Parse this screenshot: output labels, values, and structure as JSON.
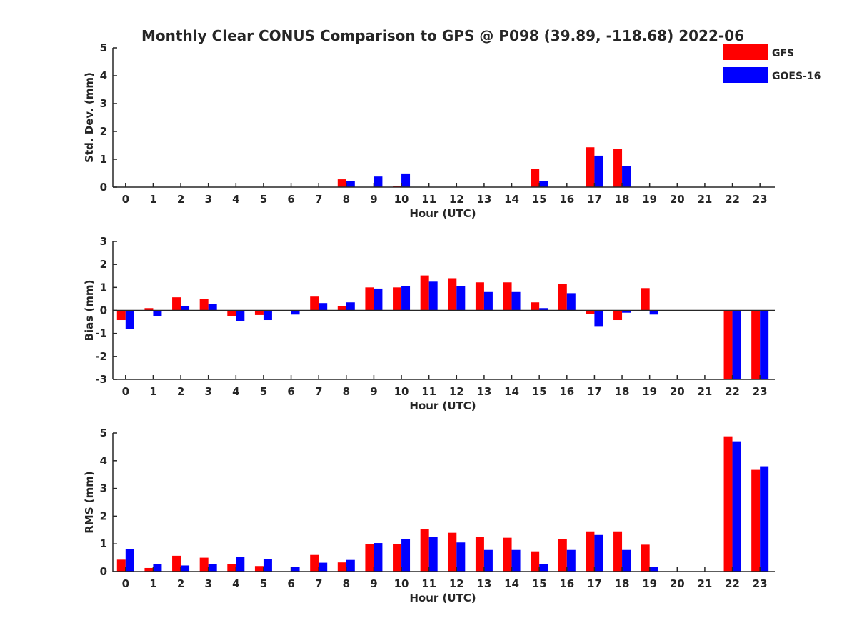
{
  "title": "Monthly Clear CONUS Comparison to GPS @ P098 (39.89, -118.68) 2022-06",
  "legend": {
    "placement": "top-right",
    "entries": [
      {
        "name": "GFS",
        "color": "#ff0000"
      },
      {
        "name": "GOES-16",
        "color": "#0000ff"
      }
    ]
  },
  "chart_data": [
    {
      "type": "bar",
      "xlabel": "Hour (UTC)",
      "ylabel": "Std. Dev. (mm)",
      "ylim": [
        0,
        5
      ],
      "yticks": [
        "0",
        "1",
        "2",
        "3",
        "4",
        "5"
      ],
      "categories": [
        "0",
        "1",
        "2",
        "3",
        "4",
        "5",
        "6",
        "7",
        "8",
        "9",
        "10",
        "11",
        "12",
        "13",
        "14",
        "15",
        "16",
        "17",
        "18",
        "19",
        "20",
        "21",
        "22",
        "23"
      ],
      "series": [
        {
          "name": "GFS",
          "color": "#ff0000",
          "values": [
            0,
            0,
            0,
            0,
            0,
            0,
            0,
            0,
            0.28,
            0,
            0.05,
            0,
            0,
            0,
            0,
            0.65,
            0,
            1.43,
            1.38,
            0,
            0,
            0,
            0,
            0
          ]
        },
        {
          "name": "GOES-16",
          "color": "#0000ff",
          "values": [
            0,
            0,
            0,
            0,
            0,
            0,
            0,
            0,
            0.23,
            0.38,
            0.49,
            0,
            0,
            0,
            0,
            0.23,
            0,
            1.13,
            0.76,
            0,
            0,
            0,
            0,
            0
          ]
        }
      ]
    },
    {
      "type": "bar",
      "xlabel": "Hour (UTC)",
      "ylabel": "Bias (mm)",
      "ylim": [
        -3,
        3
      ],
      "yticks": [
        "-3",
        "-2",
        "-1",
        "0",
        "1",
        "2",
        "3"
      ],
      "categories": [
        "0",
        "1",
        "2",
        "3",
        "4",
        "5",
        "6",
        "7",
        "8",
        "9",
        "10",
        "11",
        "12",
        "13",
        "14",
        "15",
        "16",
        "17",
        "18",
        "19",
        "20",
        "21",
        "22",
        "23"
      ],
      "series": [
        {
          "name": "GFS",
          "color": "#ff0000",
          "values": [
            -0.42,
            0.1,
            0.57,
            0.5,
            -0.25,
            -0.2,
            0,
            0.6,
            0.2,
            1.0,
            1.0,
            1.52,
            1.4,
            1.22,
            1.22,
            0.35,
            1.15,
            -0.15,
            -0.42,
            0.97,
            0,
            0,
            -3,
            -3
          ]
        },
        {
          "name": "GOES-16",
          "color": "#0000ff",
          "values": [
            -0.82,
            -0.25,
            0.2,
            0.28,
            -0.48,
            -0.42,
            -0.18,
            0.32,
            0.35,
            0.95,
            1.05,
            1.25,
            1.05,
            0.8,
            0.8,
            0.1,
            0.75,
            -0.68,
            -0.1,
            -0.18,
            0,
            0,
            -3,
            -3
          ]
        }
      ]
    },
    {
      "type": "bar",
      "xlabel": "Hour (UTC)",
      "ylabel": "RMS (mm)",
      "ylim": [
        0,
        5
      ],
      "yticks": [
        "0",
        "1",
        "2",
        "3",
        "4",
        "5"
      ],
      "categories": [
        "0",
        "1",
        "2",
        "3",
        "4",
        "5",
        "6",
        "7",
        "8",
        "9",
        "10",
        "11",
        "12",
        "13",
        "14",
        "15",
        "16",
        "17",
        "18",
        "19",
        "20",
        "21",
        "22",
        "23"
      ],
      "series": [
        {
          "name": "GFS",
          "color": "#ff0000",
          "values": [
            0.43,
            0.13,
            0.57,
            0.5,
            0.28,
            0.2,
            0,
            0.6,
            0.33,
            1.0,
            0.98,
            1.52,
            1.4,
            1.25,
            1.22,
            0.73,
            1.17,
            1.45,
            1.45,
            0.97,
            0,
            0,
            4.88,
            3.67
          ]
        },
        {
          "name": "GOES-16",
          "color": "#0000ff",
          "values": [
            0.82,
            0.28,
            0.22,
            0.28,
            0.52,
            0.44,
            0.18,
            0.32,
            0.42,
            1.03,
            1.16,
            1.25,
            1.05,
            0.78,
            0.78,
            0.26,
            0.78,
            1.32,
            0.78,
            0.18,
            0,
            0,
            4.7,
            3.8
          ]
        }
      ]
    }
  ]
}
